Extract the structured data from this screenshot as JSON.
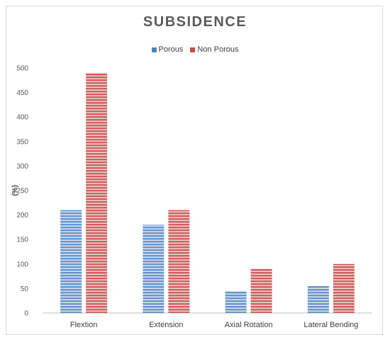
{
  "chart_data": {
    "type": "bar",
    "title": "SUBSIDENCE",
    "ylabel": "(%)",
    "xlabel": "",
    "categories": [
      "Flextion",
      "Extension",
      "Axial Rotation",
      "Lateral Bending"
    ],
    "series": [
      {
        "name": "Porous",
        "values": [
          210,
          180,
          45,
          55
        ],
        "color": "#4f81bd"
      },
      {
        "name": "Non Porous",
        "values": [
          490,
          210,
          90,
          100
        ],
        "color": "#c0504d"
      }
    ],
    "ylim": [
      0,
      500
    ],
    "yticks": [
      0,
      50,
      100,
      150,
      200,
      250,
      300,
      350,
      400,
      450,
      500
    ],
    "grid": false,
    "legend_position": "top-center",
    "bar_pattern": "horizontal-stripes"
  }
}
